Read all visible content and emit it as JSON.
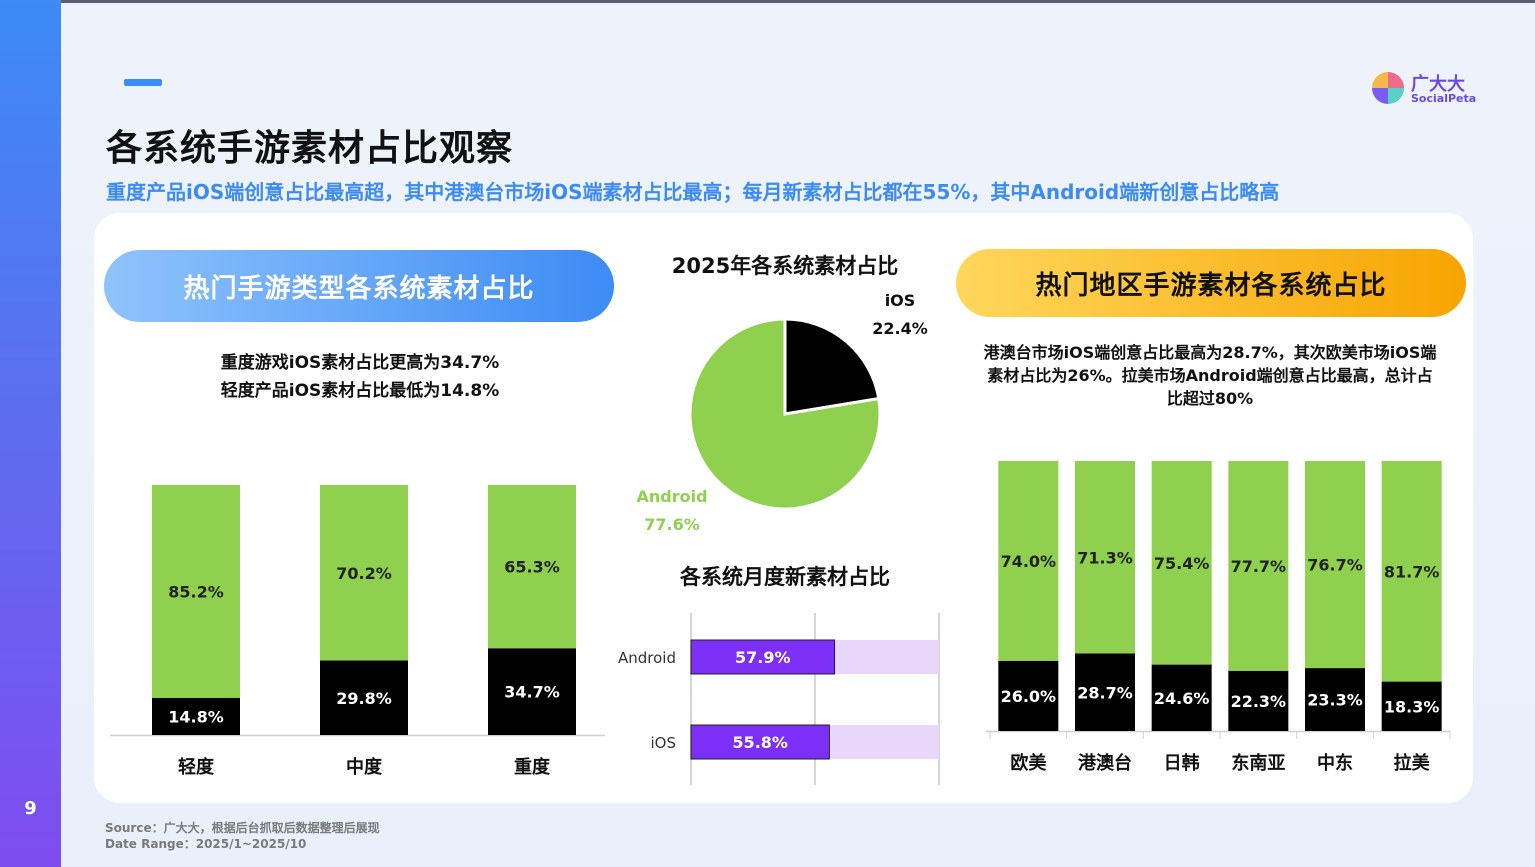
{
  "page": {
    "number": "9",
    "title": "各系统手游素材占比观察",
    "subtitle": "重度产品iOS端创意占比最高超，其中港澳台市场iOS端素材占比最高；每月新素材占比都在55%，其中Android端新创意占比略高",
    "logo": {
      "name": "广大大",
      "sub": "SocialPeta"
    },
    "footer": {
      "source": "Source：广大大，根据后台抓取后数据整理后展现",
      "date_range": "Date Range：2025/1~2025/10"
    }
  },
  "colors": {
    "android": "#8fd14f",
    "ios": "#000000",
    "accent": "#3d8bf5",
    "purple": "#7b2ff7",
    "lavender": "#e8d6fb"
  },
  "left_panel": {
    "heading": "热门手游类型各系统素材占比",
    "note_lines": [
      "重度游戏iOS素材占比更高为34.7%",
      "轻度产品iOS素材占比最低为14.8%"
    ]
  },
  "right_panel": {
    "heading": "热门地区手游素材各系统占比",
    "note_lines": [
      "港澳台市场iOS端创意占比最高为28.7%，其次欧美市场iOS端",
      "素材占比为26%。拉美市场Android端创意占比最高，总计占",
      "比超过80%"
    ]
  },
  "chart_data": [
    {
      "type": "bar",
      "stacked": true,
      "categories": [
        "轻度",
        "中度",
        "重度"
      ],
      "series": [
        {
          "values": [
            14.8,
            29.8,
            34.7
          ],
          "labels": [
            "14.8%",
            "29.8%",
            "34.7%"
          ],
          "color": "#000000"
        },
        {
          "values": [
            85.2,
            70.2,
            65.3
          ],
          "labels": [
            "85.2%",
            "70.2%",
            "65.3%"
          ],
          "color": "#8fd14f"
        }
      ],
      "ylim": [
        0,
        100
      ]
    },
    {
      "type": "pie",
      "title": "2025年各系统素材占比",
      "slices": [
        {
          "name": "iOS",
          "value": 22.4,
          "label": "22.4%",
          "color": "#000000"
        },
        {
          "name": "Android",
          "value": 77.6,
          "label": "77.6%",
          "color": "#8fd14f"
        }
      ]
    },
    {
      "type": "bar",
      "orientation": "horizontal",
      "title": "各系统月度新素材占比",
      "categories": [
        "Android",
        "iOS"
      ],
      "values": [
        57.9,
        55.8
      ],
      "labels": [
        "57.9%",
        "55.8%"
      ],
      "xlim": [
        0,
        100
      ],
      "color": "#7b2ff7",
      "remainder_color": "#e8d6fb"
    },
    {
      "type": "bar",
      "stacked": true,
      "categories": [
        "欧美",
        "港澳台",
        "日韩",
        "东南亚",
        "中东",
        "拉美"
      ],
      "series": [
        {
          "values": [
            26.0,
            28.7,
            24.6,
            22.3,
            23.3,
            18.3
          ],
          "labels": [
            "26.0%",
            "28.7%",
            "24.6%",
            "22.3%",
            "23.3%",
            "18.3%"
          ],
          "color": "#000000"
        },
        {
          "values": [
            74.0,
            71.3,
            75.4,
            77.7,
            76.7,
            81.7
          ],
          "labels": [
            "74.0%",
            "71.3%",
            "75.4%",
            "77.7%",
            "76.7%",
            "81.7%"
          ],
          "color": "#8fd14f"
        }
      ],
      "ylim": [
        0,
        100
      ]
    }
  ]
}
